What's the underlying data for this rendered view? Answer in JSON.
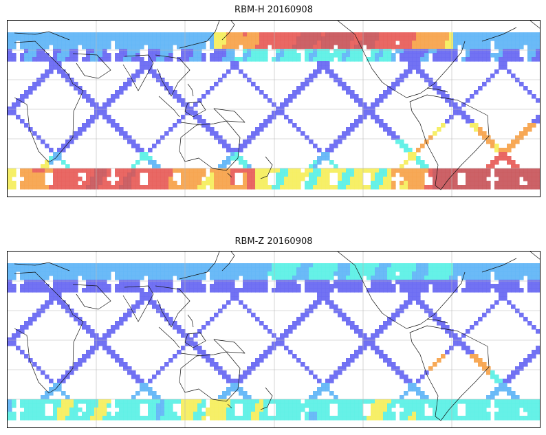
{
  "panels": [
    {
      "title": "RBM-H 20160908",
      "variant": "H"
    },
    {
      "title": "RBM-Z 20160908",
      "variant": "Z"
    }
  ],
  "colors": {
    "track_low": "#6a6af2",
    "track_mid": "#63b6f7",
    "track_cyan": "#5ef0e6",
    "track_yellow": "#f5ee60",
    "track_orange": "#f7a44e",
    "track_high": "#e8605c",
    "track_max": "#c95a5f",
    "gridline": "#b8b8b8",
    "coastline": "#111111"
  }
}
